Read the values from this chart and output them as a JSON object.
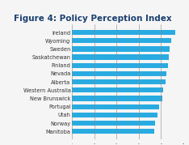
{
  "title": "Figure 4: Policy Perception Index",
  "categories": [
    "Ireland",
    "Wyoming",
    "Sweden",
    "Saskatchewan",
    "Finland",
    "Nevada",
    "Alberta",
    "Western Australia",
    "New Brunswick",
    "Portugal",
    "Utah",
    "Norway",
    "Manitoba"
  ],
  "values": [
    93,
    89,
    88,
    87,
    86,
    85,
    84,
    82,
    81,
    78,
    77,
    75,
    74
  ],
  "bar_color": "#29abe2",
  "grid_color": "#888888",
  "background_color": "#f5f5f5",
  "title_color": "#1a3f6f",
  "label_color": "#333333",
  "xlim": [
    0,
    100
  ],
  "title_fontsize": 7.5,
  "label_fontsize": 4.8,
  "bar_height": 0.62
}
